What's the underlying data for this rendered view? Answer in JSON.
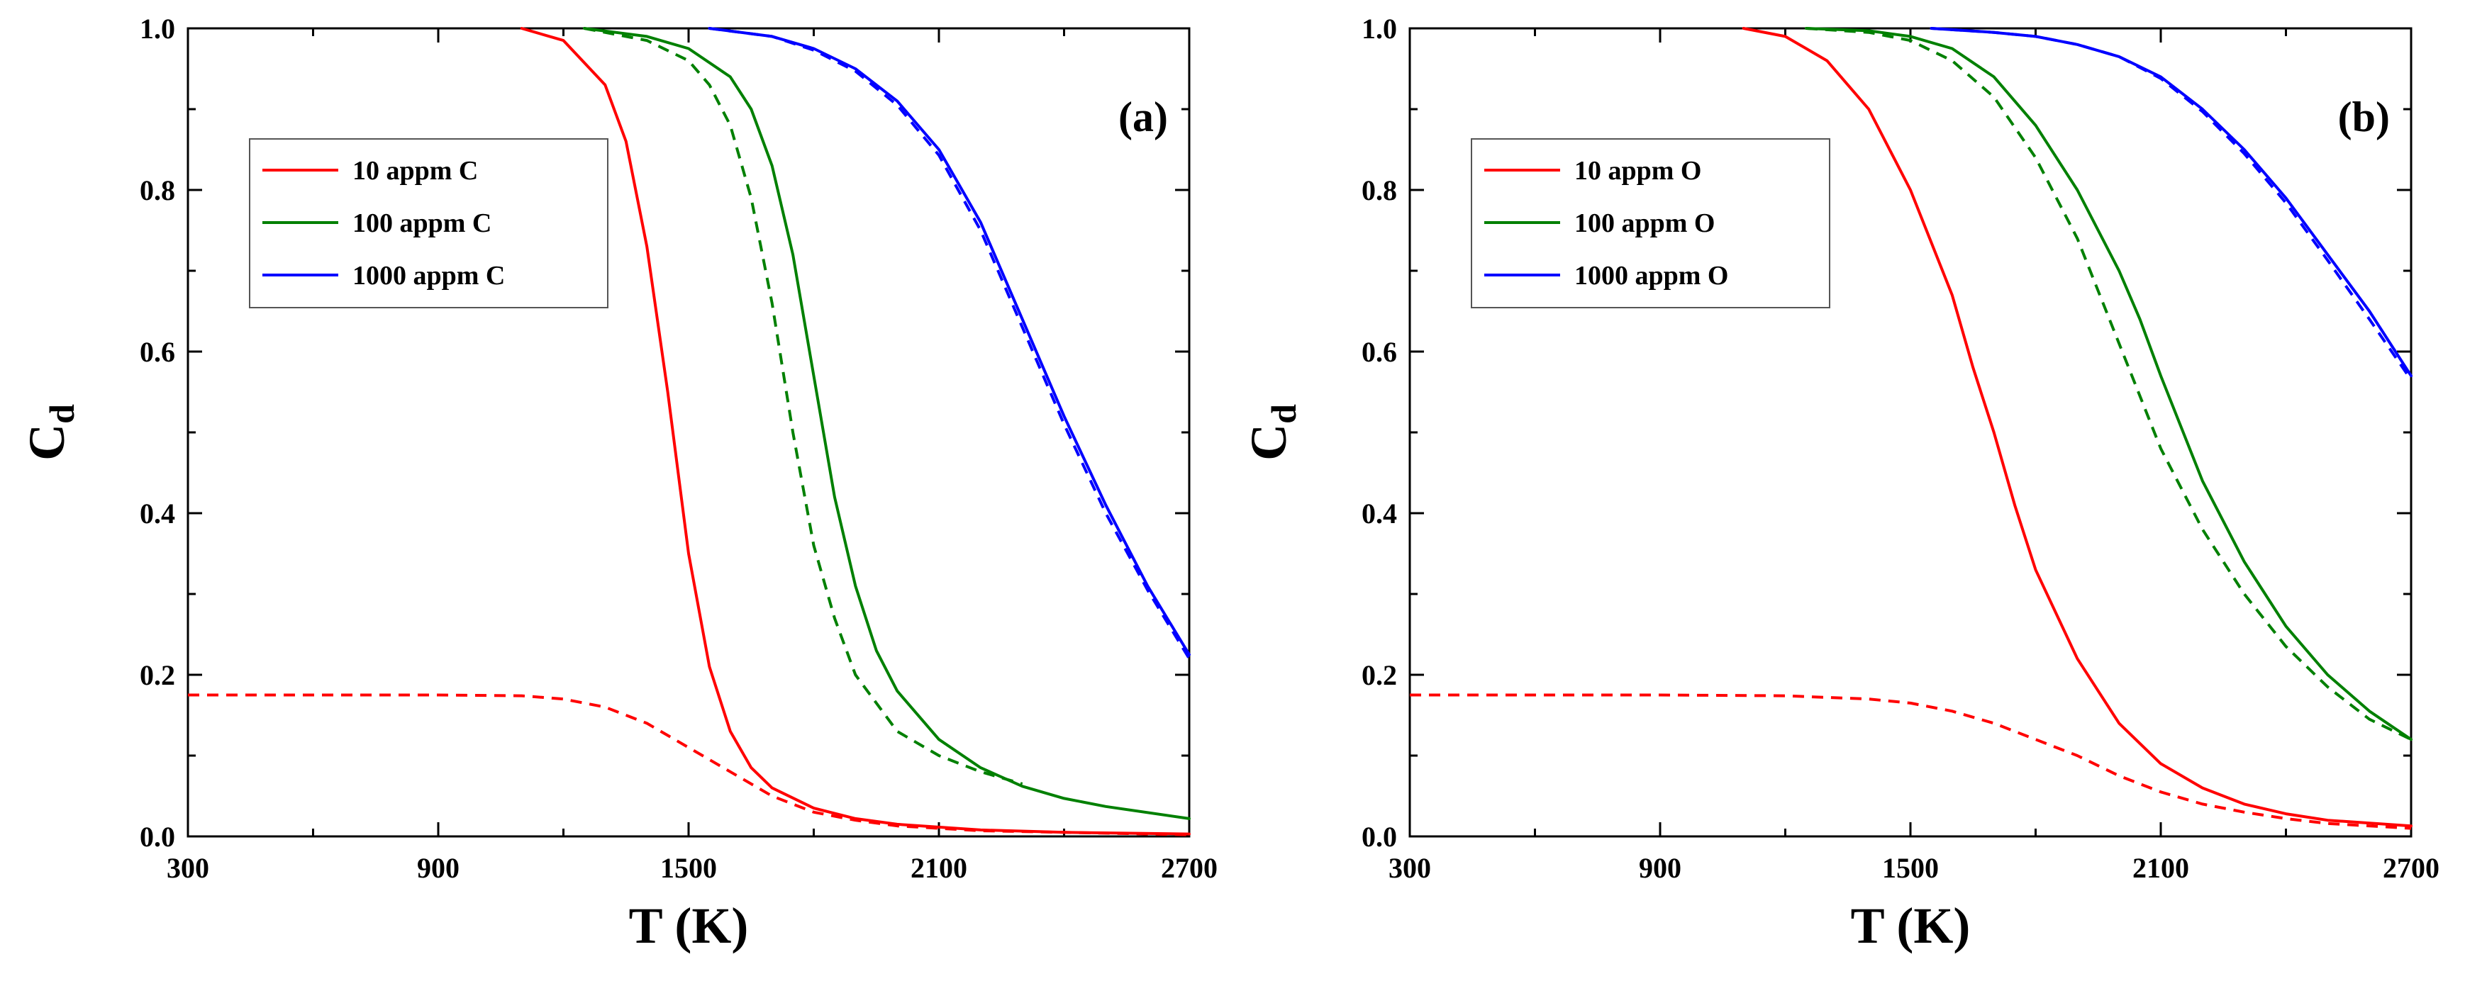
{
  "chart_data": [
    {
      "type": "line",
      "panel_label": "(a)",
      "xlabel": "T (K)",
      "ylabel": "C",
      "ylabel_sub": "d",
      "xlim": [
        300,
        2700
      ],
      "ylim": [
        0,
        1.0
      ],
      "xticks": [
        300,
        900,
        1500,
        2100,
        2700
      ],
      "xtick_labels": [
        "300",
        "900",
        "1500",
        "2100",
        "2700"
      ],
      "yticks": [
        0.0,
        0.2,
        0.4,
        0.6,
        0.8,
        1.0
      ],
      "ytick_labels": [
        "0.0",
        "0.2",
        "0.4",
        "0.6",
        "0.8",
        "1.0"
      ],
      "legend_position": "upper-left",
      "series": [
        {
          "name": "10 appm C",
          "color": "#ff0000",
          "style": "solid",
          "legend": true,
          "x": [
            1100,
            1200,
            1300,
            1350,
            1400,
            1450,
            1500,
            1550,
            1600,
            1650,
            1700,
            1800,
            1900,
            2000,
            2200,
            2400,
            2700
          ],
          "y": [
            1.0,
            0.985,
            0.93,
            0.86,
            0.73,
            0.55,
            0.35,
            0.21,
            0.13,
            0.085,
            0.06,
            0.035,
            0.022,
            0.015,
            0.008,
            0.005,
            0.003
          ]
        },
        {
          "name": "10 appm C (dashed)",
          "color": "#ff0000",
          "style": "dashed",
          "legend": false,
          "x": [
            300,
            600,
            900,
            1100,
            1200,
            1300,
            1400,
            1500,
            1600,
            1700,
            1800,
            1900,
            2000,
            2200,
            2700
          ],
          "y": [
            0.175,
            0.175,
            0.175,
            0.174,
            0.17,
            0.16,
            0.14,
            0.11,
            0.08,
            0.05,
            0.03,
            0.02,
            0.013,
            0.007,
            0.002
          ]
        },
        {
          "name": "100 appm C",
          "color": "#008000",
          "style": "solid",
          "legend": true,
          "x": [
            1250,
            1400,
            1500,
            1600,
            1650,
            1700,
            1750,
            1800,
            1850,
            1900,
            1950,
            2000,
            2100,
            2200,
            2300,
            2400,
            2500,
            2700
          ],
          "y": [
            1.0,
            0.99,
            0.975,
            0.94,
            0.9,
            0.83,
            0.72,
            0.57,
            0.42,
            0.31,
            0.23,
            0.18,
            0.12,
            0.085,
            0.062,
            0.047,
            0.037,
            0.022
          ]
        },
        {
          "name": "100 appm C (dashed)",
          "color": "#008000",
          "style": "dashed",
          "legend": false,
          "x": [
            1250,
            1400,
            1500,
            1550,
            1600,
            1650,
            1700,
            1750,
            1800,
            1850,
            1900,
            2000,
            2100,
            2200,
            2300
          ],
          "y": [
            1.0,
            0.985,
            0.96,
            0.93,
            0.88,
            0.79,
            0.66,
            0.5,
            0.36,
            0.27,
            0.2,
            0.13,
            0.1,
            0.08,
            0.065
          ]
        },
        {
          "name": "1000 appm C",
          "color": "#0000ff",
          "style": "solid",
          "legend": true,
          "x": [
            1550,
            1700,
            1800,
            1900,
            2000,
            2100,
            2200,
            2300,
            2400,
            2500,
            2600,
            2700
          ],
          "y": [
            1.0,
            0.99,
            0.975,
            0.95,
            0.91,
            0.85,
            0.76,
            0.64,
            0.52,
            0.41,
            0.31,
            0.225
          ]
        },
        {
          "name": "1000 appm C (dashed)",
          "color": "#0000ff",
          "style": "dashed",
          "legend": false,
          "x": [
            1550,
            1700,
            1800,
            1900,
            2000,
            2100,
            2200,
            2300,
            2400,
            2500,
            2600,
            2700
          ],
          "y": [
            1.0,
            0.99,
            0.973,
            0.947,
            0.905,
            0.843,
            0.75,
            0.63,
            0.51,
            0.4,
            0.305,
            0.22
          ]
        }
      ]
    },
    {
      "type": "line",
      "panel_label": "(b)",
      "xlabel": "T (K)",
      "ylabel": "C",
      "ylabel_sub": "d",
      "xlim": [
        300,
        2700
      ],
      "ylim": [
        0,
        1.0
      ],
      "xticks": [
        300,
        900,
        1500,
        2100,
        2700
      ],
      "xtick_labels": [
        "300",
        "900",
        "1500",
        "2100",
        "2700"
      ],
      "yticks": [
        0.0,
        0.2,
        0.4,
        0.6,
        0.8,
        1.0
      ],
      "ytick_labels": [
        "0.0",
        "0.2",
        "0.4",
        "0.6",
        "0.8",
        "1.0"
      ],
      "legend_position": "upper-left",
      "series": [
        {
          "name": "10 appm O",
          "color": "#ff0000",
          "style": "solid",
          "legend": true,
          "x": [
            1100,
            1200,
            1300,
            1400,
            1500,
            1600,
            1650,
            1700,
            1750,
            1800,
            1900,
            2000,
            2100,
            2200,
            2300,
            2400,
            2500,
            2700
          ],
          "y": [
            1.0,
            0.99,
            0.96,
            0.9,
            0.8,
            0.67,
            0.58,
            0.5,
            0.41,
            0.33,
            0.22,
            0.14,
            0.09,
            0.06,
            0.04,
            0.028,
            0.02,
            0.013
          ]
        },
        {
          "name": "10 appm O (dashed)",
          "color": "#ff0000",
          "style": "dashed",
          "legend": false,
          "x": [
            300,
            600,
            900,
            1200,
            1400,
            1500,
            1600,
            1700,
            1800,
            1900,
            2000,
            2100,
            2200,
            2300,
            2400,
            2500,
            2700
          ],
          "y": [
            0.175,
            0.175,
            0.175,
            0.174,
            0.17,
            0.165,
            0.155,
            0.14,
            0.12,
            0.1,
            0.075,
            0.055,
            0.04,
            0.03,
            0.022,
            0.016,
            0.01
          ]
        },
        {
          "name": "100 appm O",
          "color": "#008000",
          "style": "solid",
          "legend": true,
          "x": [
            1250,
            1400,
            1500,
            1600,
            1700,
            1800,
            1900,
            2000,
            2050,
            2100,
            2200,
            2300,
            2400,
            2500,
            2600,
            2700
          ],
          "y": [
            1.0,
            0.997,
            0.99,
            0.975,
            0.94,
            0.88,
            0.8,
            0.7,
            0.64,
            0.57,
            0.44,
            0.34,
            0.26,
            0.2,
            0.155,
            0.12
          ]
        },
        {
          "name": "100 appm O (dashed)",
          "color": "#008000",
          "style": "dashed",
          "legend": false,
          "x": [
            1250,
            1400,
            1500,
            1600,
            1700,
            1800,
            1900,
            2000,
            2100,
            2200,
            2300,
            2400,
            2500,
            2600,
            2700
          ],
          "y": [
            1.0,
            0.995,
            0.985,
            0.96,
            0.915,
            0.84,
            0.74,
            0.61,
            0.48,
            0.38,
            0.3,
            0.235,
            0.185,
            0.145,
            0.12
          ]
        },
        {
          "name": "1000 appm O",
          "color": "#0000ff",
          "style": "solid",
          "legend": true,
          "x": [
            1550,
            1700,
            1800,
            1900,
            2000,
            2100,
            2200,
            2300,
            2400,
            2500,
            2600,
            2700
          ],
          "y": [
            1.0,
            0.995,
            0.99,
            0.98,
            0.965,
            0.94,
            0.9,
            0.85,
            0.79,
            0.72,
            0.65,
            0.57
          ]
        },
        {
          "name": "1000 appm O (dashed)",
          "color": "#0000ff",
          "style": "dashed",
          "legend": false,
          "x": [
            1550,
            1700,
            1800,
            1900,
            2000,
            2100,
            2200,
            2300,
            2400,
            2500,
            2600,
            2700
          ],
          "y": [
            1.0,
            0.995,
            0.99,
            0.98,
            0.965,
            0.938,
            0.897,
            0.845,
            0.784,
            0.713,
            0.64,
            0.565
          ]
        }
      ]
    }
  ]
}
